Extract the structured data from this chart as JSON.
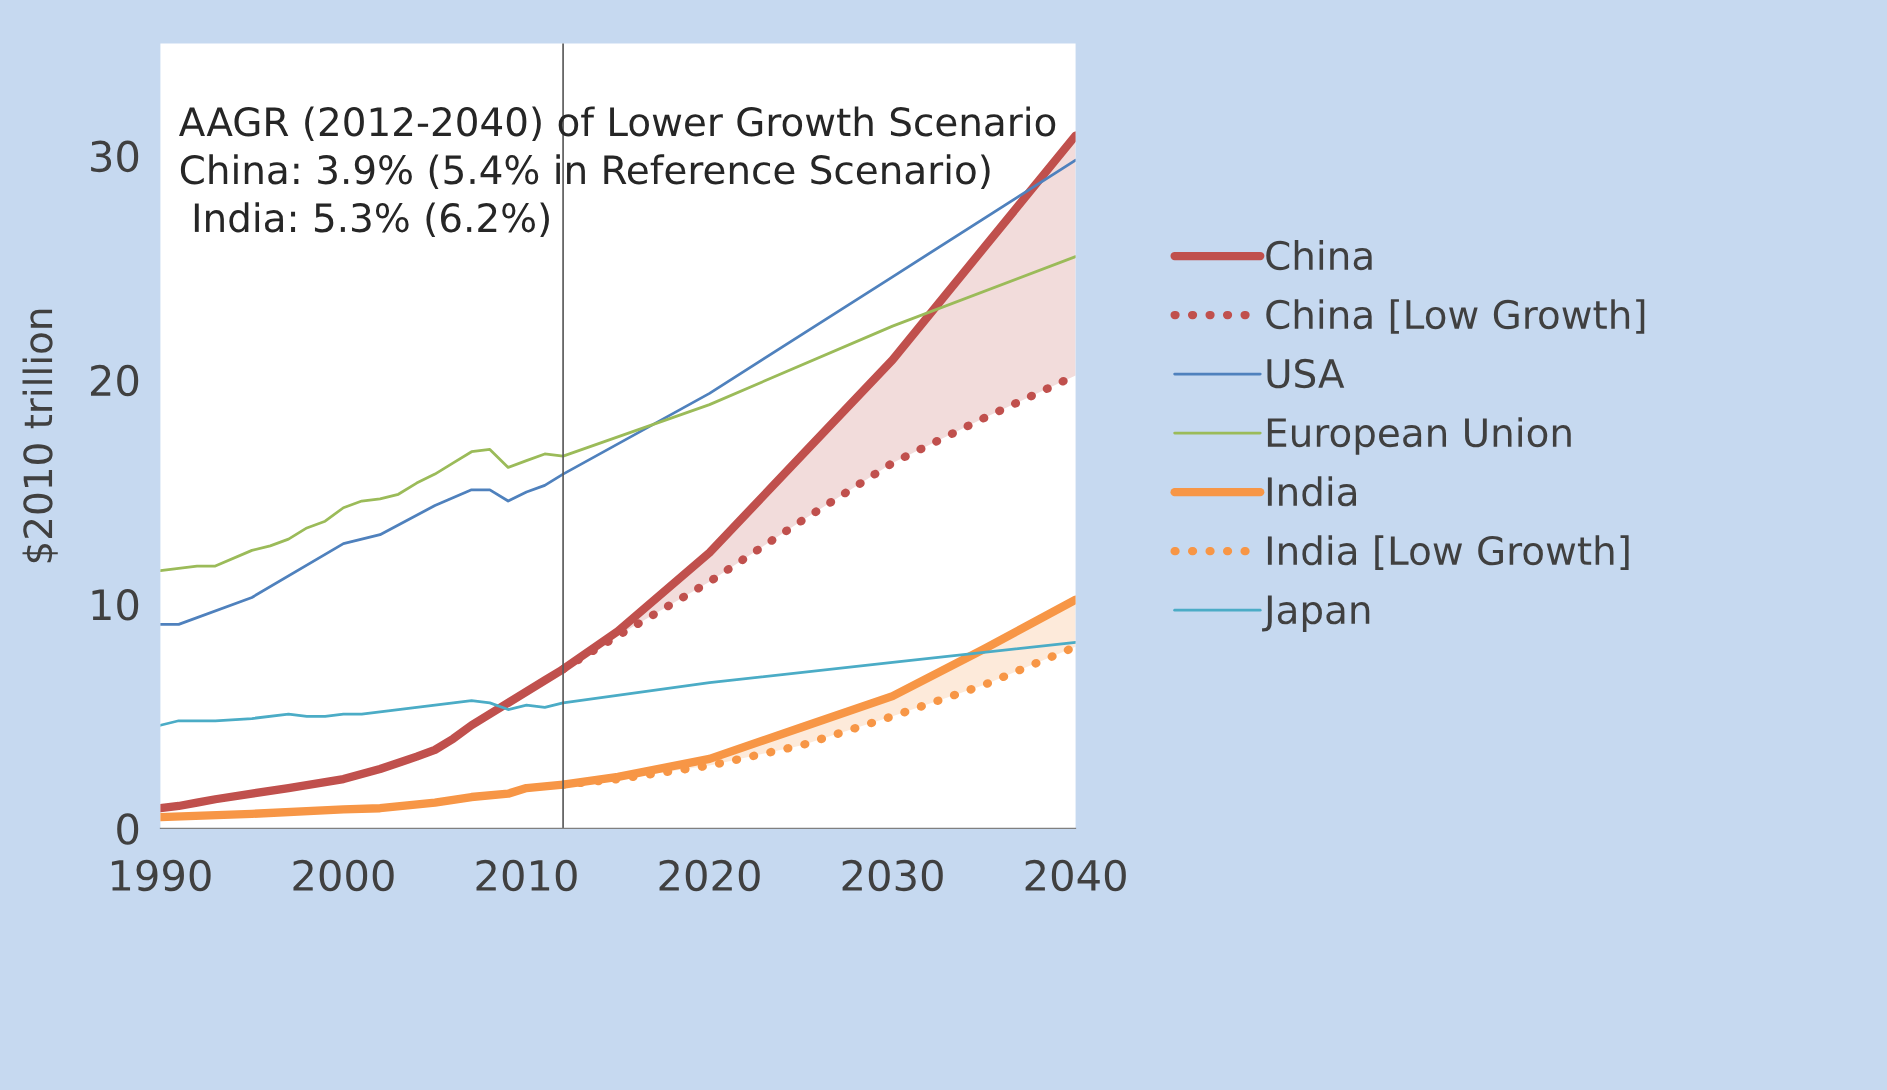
{
  "chart_data": {
    "type": "line",
    "ylabel": "$2010 trillion",
    "xlim": [
      1990,
      2040
    ],
    "ylim": [
      0,
      35
    ],
    "xticks": [
      1990,
      2000,
      2010,
      2020,
      2030,
      2040
    ],
    "yticks": [
      0,
      10,
      20,
      30
    ],
    "grid": false,
    "legend": "right",
    "marker": "none",
    "ref_lines": [
      {
        "axis": "x",
        "value": 2012,
        "color": "#595959"
      }
    ],
    "annotations": [
      "AAGR (2012-2040) of Lower Growth Scenario\nChina: 3.9% (5.4% in Reference Scenario)\n India: 5.3% (6.2%)"
    ],
    "series": [
      {
        "name": "China",
        "color": "#c0504d",
        "line_style": "solid",
        "x": [
          1990,
          1991,
          1992,
          1993,
          1995,
          1997,
          2000,
          2002,
          2004,
          2005,
          2006,
          2007,
          2008,
          2009,
          2010,
          2011,
          2012,
          2015,
          2020,
          2025,
          2030,
          2035,
          2040
        ],
        "values": [
          0.9,
          1.0,
          1.15,
          1.3,
          1.55,
          1.8,
          2.2,
          2.65,
          3.2,
          3.5,
          4.0,
          4.6,
          5.1,
          5.6,
          6.1,
          6.6,
          7.1,
          8.8,
          12.3,
          16.6,
          20.9,
          25.9,
          30.9
        ]
      },
      {
        "name": "China [Low Growth]",
        "color": "#c0504d",
        "line_style": "dotted",
        "x": [
          2012,
          2015,
          2020,
          2025,
          2030,
          2035,
          2040
        ],
        "values": [
          7.1,
          8.6,
          11.0,
          13.7,
          16.3,
          18.3,
          20.2
        ],
        "lower": [
          7.1,
          8.6,
          11.0,
          13.7,
          16.3,
          18.3,
          20.2
        ],
        "upper": [
          7.1,
          8.8,
          12.3,
          16.6,
          20.9,
          25.9,
          30.9
        ]
      },
      {
        "name": "USA",
        "color": "#4f81bd",
        "line_style": "solid",
        "x": [
          1990,
          1991,
          1995,
          2000,
          2002,
          2005,
          2007,
          2008,
          2009,
          2010,
          2011,
          2012,
          2020,
          2030,
          2040
        ],
        "values": [
          9.1,
          9.1,
          10.3,
          12.7,
          13.1,
          14.4,
          15.1,
          15.1,
          14.6,
          15.0,
          15.3,
          15.8,
          19.4,
          24.6,
          29.8
        ]
      },
      {
        "name": "European Union",
        "color": "#9bbb59",
        "line_style": "solid",
        "x": [
          1990,
          1991,
          1992,
          1993,
          1995,
          1996,
          1997,
          1998,
          1999,
          2000,
          2001,
          2002,
          2003,
          2004,
          2005,
          2006,
          2007,
          2008,
          2009,
          2010,
          2011,
          2012,
          2020,
          2030,
          2040
        ],
        "values": [
          11.5,
          11.6,
          11.7,
          11.7,
          12.4,
          12.6,
          12.9,
          13.4,
          13.7,
          14.3,
          14.6,
          14.7,
          14.9,
          15.4,
          15.8,
          16.3,
          16.8,
          16.9,
          16.1,
          16.4,
          16.7,
          16.6,
          18.9,
          22.4,
          25.5
        ]
      },
      {
        "name": "India",
        "color": "#f79646",
        "line_style": "solid",
        "x": [
          1990,
          1995,
          2000,
          2002,
          2005,
          2007,
          2009,
          2010,
          2012,
          2015,
          2020,
          2025,
          2030,
          2035,
          2040
        ],
        "values": [
          0.5,
          0.65,
          0.85,
          0.9,
          1.15,
          1.4,
          1.55,
          1.8,
          1.95,
          2.3,
          3.1,
          4.5,
          5.9,
          8.0,
          10.2
        ]
      },
      {
        "name": "India [Low Growth]",
        "color": "#f79646",
        "line_style": "dotted",
        "x": [
          2012,
          2015,
          2020,
          2025,
          2030,
          2035,
          2040
        ],
        "values": [
          1.95,
          2.2,
          2.8,
          3.7,
          5.0,
          6.4,
          8.1
        ],
        "lower": [
          1.95,
          2.2,
          2.8,
          3.7,
          5.0,
          6.4,
          8.1
        ],
        "upper": [
          1.95,
          2.3,
          3.1,
          4.5,
          5.9,
          8.0,
          10.2
        ]
      },
      {
        "name": "Japan",
        "color": "#4bacc6",
        "line_style": "solid",
        "x": [
          1990,
          1991,
          1993,
          1995,
          1997,
          1998,
          1999,
          2000,
          2001,
          2003,
          2004,
          2006,
          2007,
          2008,
          2009,
          2010,
          2011,
          2012,
          2020,
          2030,
          2040
        ],
        "values": [
          4.6,
          4.8,
          4.8,
          4.9,
          5.1,
          5.0,
          5.0,
          5.1,
          5.1,
          5.3,
          5.4,
          5.6,
          5.7,
          5.6,
          5.3,
          5.5,
          5.4,
          5.6,
          6.5,
          7.4,
          8.3
        ]
      }
    ]
  }
}
